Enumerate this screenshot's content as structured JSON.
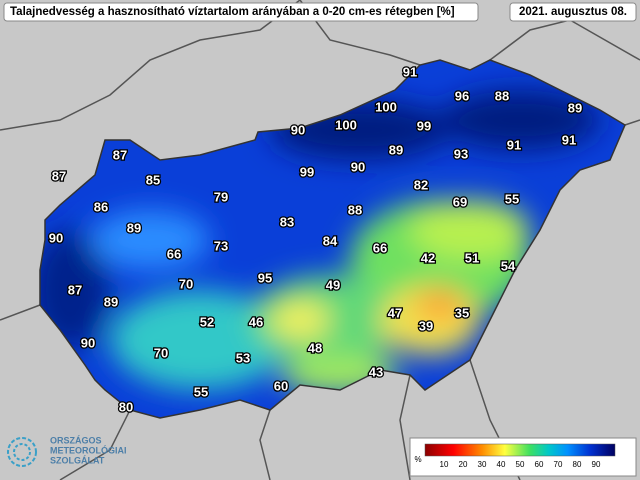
{
  "header": {
    "title": "Talajnedvesség a hasznosítható víztartalom arányában a 0-20 cm-es rétegben [%]",
    "date": "2021. augusztus 08."
  },
  "stations": [
    91,
    96,
    88,
    89,
    100,
    90,
    100,
    99,
    87,
    91,
    91,
    93,
    89,
    87,
    85,
    99,
    90,
    82,
    79,
    86,
    69,
    55,
    89,
    88,
    83,
    90,
    73,
    84,
    66,
    66,
    42,
    51,
    54,
    70,
    95,
    49,
    87,
    89,
    47,
    35,
    52,
    46,
    39,
    90,
    48,
    70,
    53,
    43,
    60,
    55,
    80
  ],
  "legend": {
    "unit": "%",
    "ticks": [
      10,
      20,
      30,
      40,
      50,
      60,
      70,
      80,
      90
    ]
  },
  "logo": {
    "lines": [
      "ORSZÁGOS",
      "METEOROLÓGIAI",
      "SZOLGÁLAT"
    ]
  }
}
